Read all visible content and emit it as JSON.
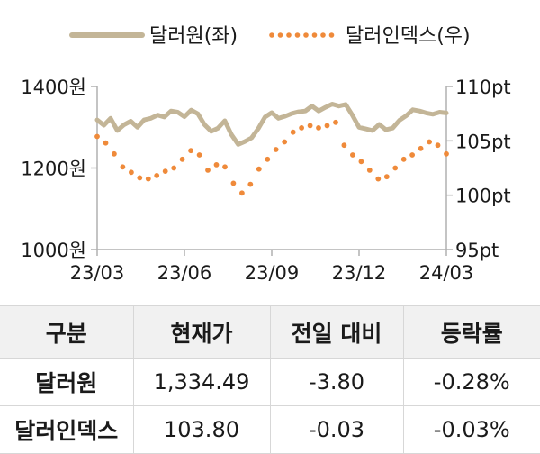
{
  "chart_data": {
    "type": "line",
    "legend": [
      {
        "name": "달러원(좌)",
        "style": "solid",
        "color": "#c3b597"
      },
      {
        "name": "달러인덱스(우)",
        "style": "dotted",
        "color": "#ef8a3a"
      }
    ],
    "legend_position": "top",
    "x_ticks": [
      "23/03",
      "23/06",
      "23/09",
      "23/12",
      "24/03"
    ],
    "y_left": {
      "ticks": [
        "1400원",
        "1200원",
        "1000원"
      ],
      "range": [
        1000,
        1400
      ]
    },
    "y_right": {
      "ticks": [
        "110pt",
        "105pt",
        "100pt",
        "95pt"
      ],
      "range": [
        95,
        110
      ]
    },
    "grid": false,
    "series": [
      {
        "name": "달러원(좌)",
        "axis": "left",
        "color": "#c3b597",
        "values": [
          1318,
          1305,
          1322,
          1292,
          1306,
          1315,
          1300,
          1318,
          1322,
          1330,
          1325,
          1340,
          1337,
          1326,
          1342,
          1333,
          1306,
          1290,
          1298,
          1316,
          1282,
          1258,
          1265,
          1274,
          1297,
          1325,
          1336,
          1322,
          1327,
          1334,
          1338,
          1340,
          1352,
          1340,
          1349,
          1357,
          1352,
          1356,
          1330,
          1300,
          1296,
          1292,
          1307,
          1294,
          1298,
          1317,
          1328,
          1343,
          1340,
          1335,
          1332,
          1337,
          1335
        ]
      },
      {
        "name": "달러인덱스(우)",
        "axis": "right",
        "color": "#ef8a3a",
        "values": [
          105.4,
          104.8,
          103.8,
          102.6,
          102.1,
          101.6,
          101.5,
          101.8,
          102.2,
          102.5,
          103.3,
          104.1,
          103.7,
          102.3,
          102.8,
          102.6,
          101.1,
          100.2,
          101.0,
          102.4,
          103.3,
          104.2,
          104.9,
          105.8,
          106.2,
          106.4,
          106.2,
          106.4,
          106.7,
          104.6,
          103.7,
          103.1,
          102.3,
          101.5,
          101.7,
          102.5,
          103.3,
          103.7,
          104.3,
          104.9,
          104.6,
          103.8
        ]
      }
    ]
  },
  "table": {
    "headers": [
      "구분",
      "현재가",
      "전일 대비",
      "등락률"
    ],
    "rows": [
      [
        "달러원",
        "1,334.49",
        "-3.80",
        "-0.28%"
      ],
      [
        "달러인덱스",
        "103.80",
        "-0.03",
        "-0.03%"
      ]
    ]
  }
}
